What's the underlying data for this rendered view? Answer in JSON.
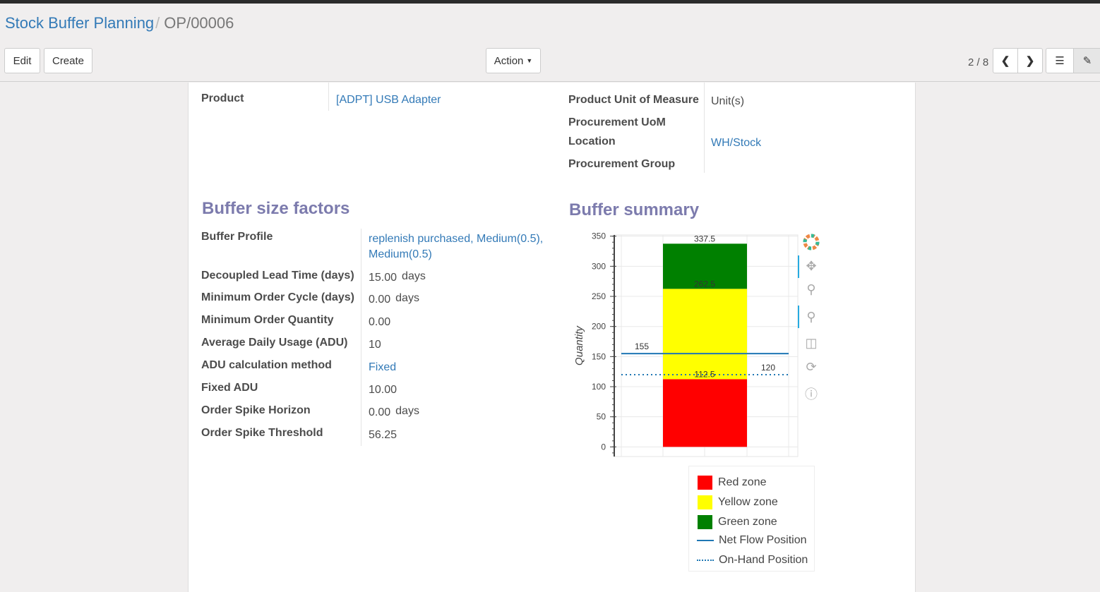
{
  "breadcrumb": {
    "parent": "Stock Buffer Planning",
    "current": "OP/00006"
  },
  "toolbar": {
    "edit": "Edit",
    "create": "Create",
    "action": "Action",
    "pager": "2 / 8"
  },
  "header_fields": {
    "product_label": "Product",
    "product_value": "[ADPT] USB Adapter",
    "uom_label": "Product Unit of Measure",
    "uom_value": "Unit(s)",
    "proc_uom_label": "Procurement UoM",
    "location_label": "Location",
    "location_value": "WH/Stock",
    "group_label": "Procurement Group"
  },
  "factors": {
    "title": "Buffer size factors",
    "rows": [
      {
        "label": "Buffer Profile",
        "value": "replenish purchased, Medium(0.5), Medium(0.5)",
        "link": true
      },
      {
        "label": "Decoupled Lead Time (days)",
        "value": "15.00",
        "unit": "days"
      },
      {
        "label": "Minimum Order Cycle (days)",
        "value": "0.00",
        "unit": "days"
      },
      {
        "label": "Minimum Order Quantity",
        "value": "0.00"
      },
      {
        "label": "Average Daily Usage (ADU)",
        "value": "10"
      },
      {
        "label": "ADU calculation method",
        "value": "Fixed",
        "link": true
      },
      {
        "label": "Fixed ADU",
        "value": "10.00"
      },
      {
        "label": "Order Spike Horizon",
        "value": "0.00",
        "unit": "days"
      },
      {
        "label": "Order Spike Threshold",
        "value": "56.25"
      }
    ]
  },
  "summary": {
    "title": "Buffer summary"
  },
  "chart_data": {
    "type": "bar",
    "stacked": true,
    "ylabel": "Quantity",
    "ylim": [
      -16,
      352
    ],
    "yticks": [
      0,
      50,
      100,
      150,
      200,
      250,
      300,
      350
    ],
    "grid": true,
    "legend_placement": "bottom",
    "zones": [
      {
        "name": "Red zone",
        "from": 0,
        "to": 112.5,
        "color": "#ff0000"
      },
      {
        "name": "Yellow zone",
        "from": 112.5,
        "to": 262.5,
        "color": "#ffff00"
      },
      {
        "name": "Green zone",
        "from": 262.5,
        "to": 337.5,
        "color": "#008000"
      }
    ],
    "bar_labels": [
      "112.5",
      "262.5",
      "337.5"
    ],
    "lines": [
      {
        "name": "Net Flow Position",
        "value": 155,
        "label": "155",
        "style": "solid",
        "color": "#1f77b4"
      },
      {
        "name": "On-Hand Position",
        "value": 120,
        "label": "120",
        "style": "dotted",
        "color": "#1f77b4"
      }
    ]
  }
}
